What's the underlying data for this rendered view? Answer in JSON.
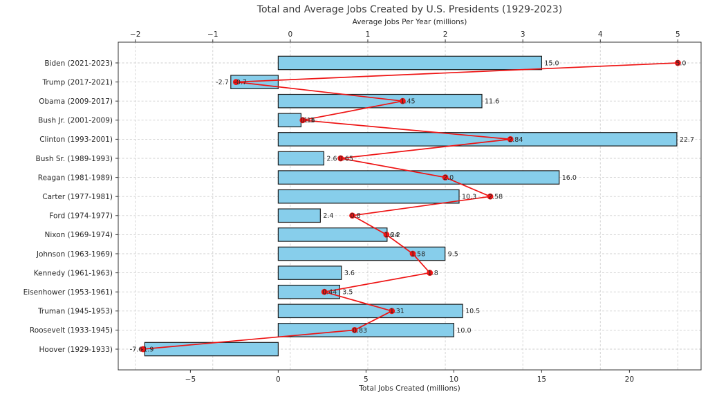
{
  "chart_data": {
    "type": "bar",
    "orientation": "horizontal",
    "title": "Total and Average Jobs Created by U.S. Presidents (1929-2023)",
    "xlabel_top": "Average Jobs Per Year (millions)",
    "xlabel_bottom": "Total Jobs Created (millions)",
    "categories": [
      "Biden (2021-2023)",
      "Trump (2017-2021)",
      "Obama (2009-2017)",
      "Bush Jr. (2001-2009)",
      "Clinton (1993-2001)",
      "Bush Sr. (1989-1993)",
      "Reagan (1981-1989)",
      "Carter (1977-1981)",
      "Ford (1974-1977)",
      "Nixon (1969-1974)",
      "Johnson (1963-1969)",
      "Kennedy (1961-1963)",
      "Eisenhower (1953-1961)",
      "Truman (1945-1953)",
      "Roosevelt (1933-1945)",
      "Hoover (1929-1933)"
    ],
    "series": [
      {
        "name": "Total Jobs Created (millions)",
        "render": "bar",
        "axis": "bottom",
        "color": "#87CEEB",
        "edge_color": "#1a1a1a",
        "values": [
          15.0,
          -2.7,
          11.6,
          1.3,
          22.7,
          2.6,
          16.0,
          10.3,
          2.4,
          6.2,
          9.5,
          3.6,
          3.5,
          10.5,
          10.0,
          -7.6
        ],
        "labels": [
          "15.0",
          "-2.7",
          "11.6",
          "1.3",
          "22.7",
          "2.6",
          "16.0",
          "10.3",
          "2.4",
          "6.2",
          "9.5",
          "3.6",
          "3.5",
          "10.5",
          "10.0",
          "-7.6"
        ]
      },
      {
        "name": "Average Jobs Per Year (millions)",
        "render": "line",
        "axis": "top",
        "color": "#ee1414",
        "values": [
          5.0,
          -0.7,
          1.45,
          0.16,
          2.84,
          0.65,
          2.0,
          2.58,
          0.8,
          1.24,
          1.58,
          1.8,
          0.44,
          1.31,
          0.83,
          -1.9
        ],
        "labels": [
          "5.0",
          "-0.7",
          "1.45",
          "0.16",
          "2.84",
          "0.65",
          "2.0",
          "2.58",
          "0.8",
          "1.24",
          "1.58",
          "1.8",
          "0.44",
          "1.31",
          "0.83",
          "-1.9"
        ]
      }
    ],
    "bottom_axis": {
      "ticks": [
        -5,
        0,
        5,
        10,
        15,
        20
      ],
      "range": [
        -9.11,
        24.08
      ]
    },
    "top_axis": {
      "ticks": [
        -2,
        -1,
        0,
        1,
        2,
        3,
        4,
        5
      ],
      "range": [
        -2.22,
        5.3
      ]
    },
    "grid": {
      "show": true,
      "style": "dashed",
      "color": "#cfcfcf",
      "vertical_source": "top_axis"
    },
    "colors": {
      "text": "#262626",
      "spine": "#333333"
    }
  }
}
